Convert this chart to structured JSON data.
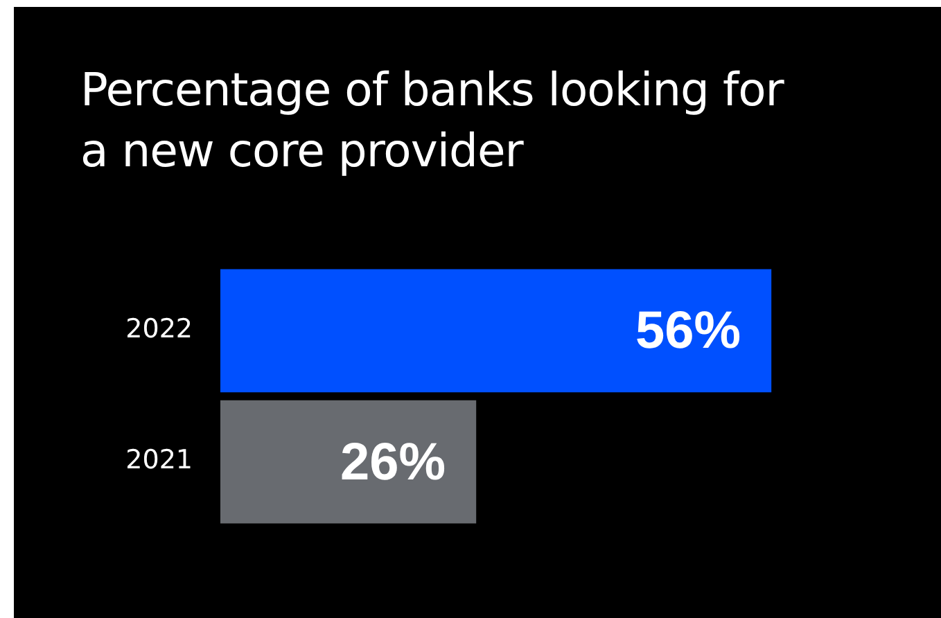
{
  "chart_data": {
    "type": "bar",
    "orientation": "horizontal",
    "title": "Percentage of banks looking for a new core provider",
    "categories": [
      "2022",
      "2021"
    ],
    "values": [
      56,
      26
    ],
    "colors": [
      "#0050ff",
      "#686b70"
    ],
    "value_labels": [
      "56%",
      "26%"
    ],
    "tick_labels": "y",
    "legend": false
  }
}
